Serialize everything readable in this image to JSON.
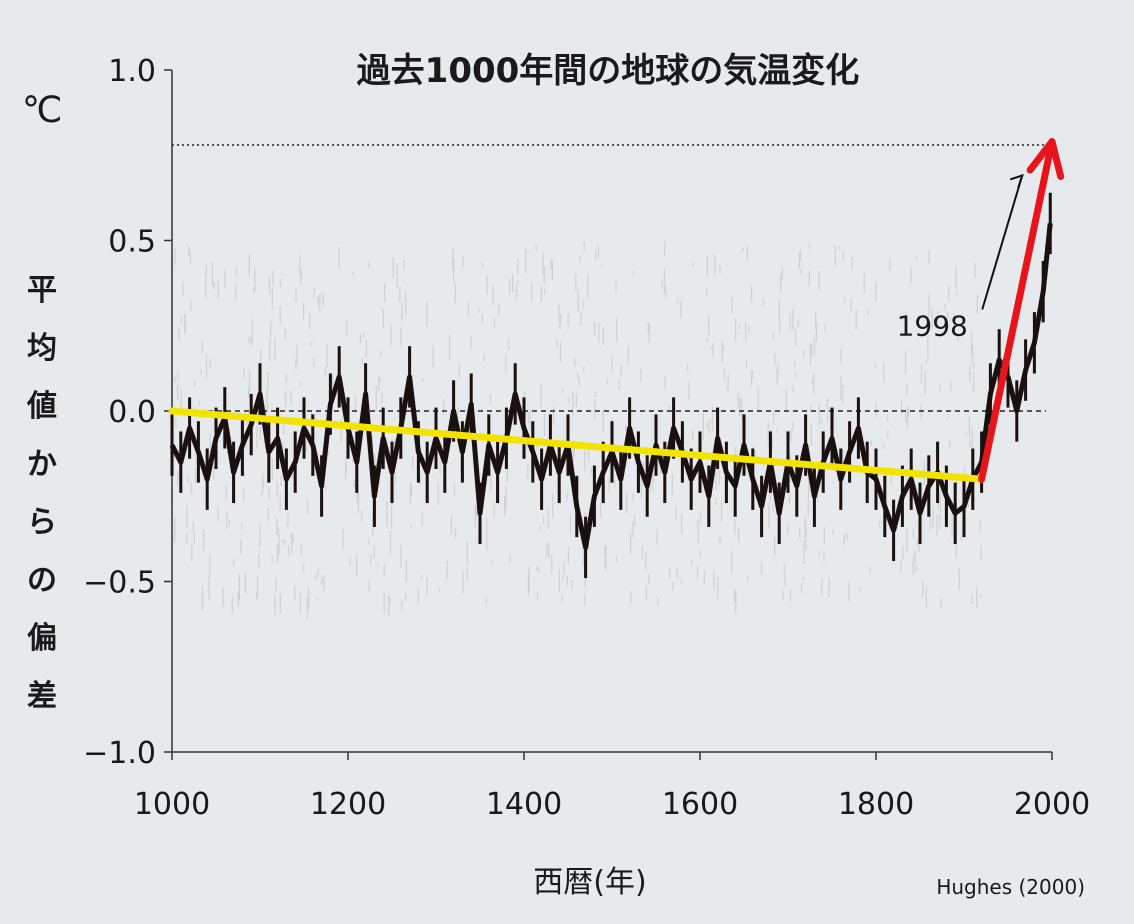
{
  "chart_data": {
    "type": "line",
    "title": "過去1000年間の地球の気温変化",
    "unit": "℃",
    "ylabel": "平均値からの偏差",
    "xlabel": "西暦(年)",
    "credit": "Hughes (2000)",
    "xlim": [
      1000,
      2000
    ],
    "ylim": [
      -1.0,
      1.0
    ],
    "x_ticks": [
      1000,
      1200,
      1400,
      1600,
      1800,
      2000
    ],
    "y_ticks": [
      1.0,
      0.5,
      0.0,
      -0.5,
      -1.0
    ],
    "y_tick_labels": [
      "1.0",
      "0.5",
      "0.0",
      "−0.5",
      "−1.0"
    ],
    "reference_lines": [
      {
        "y": 0.0,
        "style": "dashed"
      },
      {
        "y": 0.78,
        "style": "dotted"
      }
    ],
    "series": [
      {
        "kind": "reconstruction",
        "color": "#1a1010",
        "x": [
          1000,
          1010,
          1020,
          1030,
          1040,
          1050,
          1060,
          1070,
          1080,
          1090,
          1100,
          1110,
          1120,
          1130,
          1140,
          1150,
          1160,
          1170,
          1180,
          1190,
          1200,
          1210,
          1220,
          1230,
          1240,
          1250,
          1260,
          1270,
          1280,
          1290,
          1300,
          1310,
          1320,
          1330,
          1340,
          1350,
          1360,
          1370,
          1380,
          1390,
          1400,
          1410,
          1420,
          1430,
          1440,
          1450,
          1460,
          1470,
          1480,
          1490,
          1500,
          1510,
          1520,
          1530,
          1540,
          1550,
          1560,
          1570,
          1580,
          1590,
          1600,
          1610,
          1620,
          1630,
          1640,
          1650,
          1660,
          1670,
          1680,
          1690,
          1700,
          1710,
          1720,
          1730,
          1740,
          1750,
          1760,
          1770,
          1780,
          1790,
          1800,
          1810,
          1820,
          1830,
          1840,
          1850,
          1860,
          1870,
          1880,
          1890,
          1900,
          1910,
          1920,
          1930,
          1940,
          1950,
          1960,
          1970,
          1980,
          1990,
          1998
        ],
        "y": [
          -0.1,
          -0.15,
          -0.05,
          -0.12,
          -0.2,
          -0.08,
          -0.02,
          -0.18,
          -0.1,
          -0.04,
          0.05,
          -0.12,
          -0.08,
          -0.2,
          -0.15,
          -0.05,
          -0.1,
          -0.22,
          0.02,
          0.1,
          -0.05,
          -0.15,
          0.05,
          -0.25,
          -0.08,
          -0.18,
          -0.05,
          0.1,
          -0.12,
          -0.18,
          -0.08,
          -0.15,
          0.0,
          -0.12,
          0.02,
          -0.3,
          -0.1,
          -0.18,
          -0.08,
          0.05,
          -0.05,
          -0.12,
          -0.2,
          -0.1,
          -0.18,
          -0.1,
          -0.28,
          -0.4,
          -0.25,
          -0.18,
          -0.12,
          -0.2,
          -0.05,
          -0.15,
          -0.22,
          -0.1,
          -0.18,
          -0.05,
          -0.12,
          -0.2,
          -0.15,
          -0.25,
          -0.08,
          -0.18,
          -0.22,
          -0.1,
          -0.2,
          -0.28,
          -0.15,
          -0.3,
          -0.15,
          -0.22,
          -0.1,
          -0.25,
          -0.15,
          -0.08,
          -0.2,
          -0.12,
          -0.05,
          -0.18,
          -0.2,
          -0.28,
          -0.35,
          -0.25,
          -0.2,
          -0.3,
          -0.22,
          -0.18,
          -0.25,
          -0.3,
          -0.28,
          -0.2,
          -0.15,
          0.05,
          0.15,
          0.1,
          0.0,
          0.12,
          0.2,
          0.35,
          0.55
        ]
      }
    ],
    "trend_lines": [
      {
        "color": "#f2e400",
        "x": [
          1000,
          1920
        ],
        "y": [
          0.0,
          -0.2
        ]
      },
      {
        "color": "#e8141c",
        "x": [
          1920,
          2000
        ],
        "y": [
          -0.2,
          0.79
        ],
        "arrow": true
      }
    ],
    "annotations": [
      {
        "text": "1998",
        "x": 1998,
        "y": 0.72
      }
    ]
  }
}
